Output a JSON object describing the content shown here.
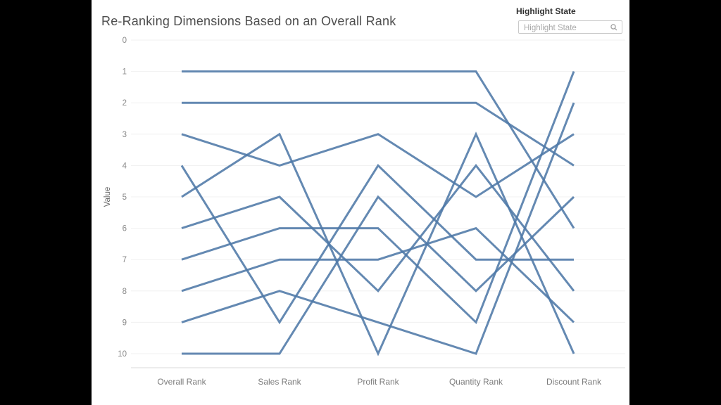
{
  "window": {
    "letterbox_color": "#000000",
    "panel_bg": "#ffffff"
  },
  "header": {
    "title": "Re-Ranking Dimensions Based on an Overall Rank"
  },
  "highlight": {
    "label": "Highlight State",
    "placeholder": "Highlight State",
    "icon": "magnifier-icon",
    "value": ""
  },
  "chart_data": {
    "type": "line",
    "subtype": "parallel-coordinates-bump-chart",
    "title": "Re-Ranking Dimensions Based on an Overall Rank",
    "categories": [
      "Overall Rank",
      "Sales Rank",
      "Profit Rank",
      "Quantity Rank",
      "Discount Rank"
    ],
    "ylabel": "Value",
    "yticks": [
      0,
      1,
      2,
      3,
      4,
      5,
      6,
      7,
      8,
      9,
      10
    ],
    "ylim": [
      0,
      10
    ],
    "y_inverted": true,
    "grid": "horizontal",
    "legend": "none",
    "line_color": "#4e79a7",
    "series": [
      {
        "name": "overall-rank-1",
        "values": [
          1,
          1,
          1,
          1,
          6
        ]
      },
      {
        "name": "overall-rank-2",
        "values": [
          2,
          2,
          2,
          2,
          4
        ]
      },
      {
        "name": "overall-rank-3",
        "values": [
          3,
          4,
          3,
          5,
          3
        ]
      },
      {
        "name": "overall-rank-4",
        "values": [
          4,
          9,
          4,
          7,
          7
        ]
      },
      {
        "name": "overall-rank-5",
        "values": [
          5,
          3,
          10,
          3,
          10
        ]
      },
      {
        "name": "overall-rank-6",
        "values": [
          6,
          5,
          8,
          4,
          8
        ]
      },
      {
        "name": "overall-rank-7",
        "values": [
          7,
          6,
          6,
          9,
          1
        ]
      },
      {
        "name": "overall-rank-8",
        "values": [
          8,
          7,
          7,
          6,
          9
        ]
      },
      {
        "name": "overall-rank-9",
        "values": [
          9,
          8,
          9,
          10,
          2
        ]
      },
      {
        "name": "overall-rank-10",
        "values": [
          10,
          10,
          5,
          8,
          5
        ]
      }
    ]
  }
}
